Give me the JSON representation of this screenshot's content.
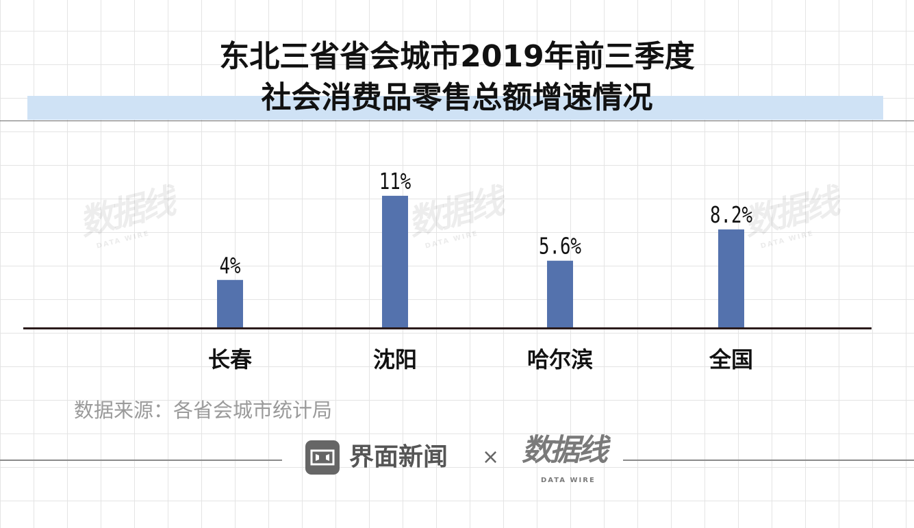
{
  "title": {
    "line1": "东北三省省会城市2019年前三季度",
    "line2": "社会消费品零售总额增速情况"
  },
  "chart_data": {
    "type": "bar",
    "title": "东北三省省会城市2019年前三季度社会消费品零售总额增速情况",
    "categories": [
      "长春",
      "沈阳",
      "哈尔滨",
      "全国"
    ],
    "values": [
      4,
      11,
      5.6,
      8.2
    ],
    "value_labels": [
      "4%",
      "11%",
      "5.6%",
      "8.2%"
    ],
    "unit": "%",
    "ylim": [
      0,
      13.5
    ],
    "grid": false,
    "legend": "none",
    "bar_color": "#5472ad",
    "axis_color": "#2a1a1a"
  },
  "source": "数据来源：各省会城市统计局",
  "footer": {
    "brand_name": "界面新闻",
    "times": "×",
    "partner_logo": "数据线",
    "partner_sub": "DATA WIRE",
    "brand_icon": "jiemian-window-icon"
  },
  "watermark": {
    "text": "数据线",
    "sub": "DATA WIRE"
  }
}
